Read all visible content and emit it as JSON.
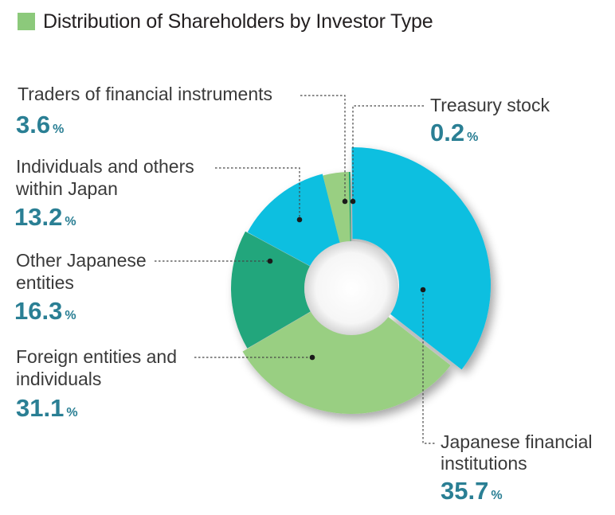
{
  "colors": {
    "title_square": "#8cc97b",
    "japanese_financial": "#08bfe0",
    "foreign": "#99cf82",
    "other_japanese": "#22a67b",
    "individuals": "#08bfe0",
    "traders": "#99cf82",
    "treasury": "#0aa06e"
  },
  "chart_data": {
    "type": "pie",
    "title": "Distribution of Shareholders by Investor Type",
    "unit": "%",
    "slices": [
      {
        "name": "Japanese financial institutions",
        "lines": [
          "Japanese financial",
          "institutions"
        ],
        "value": 35.7,
        "value_label": "35.7"
      },
      {
        "name": "Foreign entities and individuals",
        "lines": [
          "Foreign entities and",
          "individuals"
        ],
        "value": 31.1,
        "value_label": "31.1"
      },
      {
        "name": "Other Japanese entities",
        "lines": [
          "Other Japanese",
          "entities"
        ],
        "value": 16.3,
        "value_label": "16.3"
      },
      {
        "name": "Individuals and others within Japan",
        "lines": [
          "Individuals and others",
          "within Japan"
        ],
        "value": 13.2,
        "value_label": "13.2"
      },
      {
        "name": "Traders of financial instruments",
        "lines": [
          "Traders of financial instruments"
        ],
        "value": 3.6,
        "value_label": "3.6"
      },
      {
        "name": "Treasury stock",
        "lines": [
          "Treasury stock"
        ],
        "value": 0.2,
        "value_label": "0.2"
      }
    ]
  }
}
